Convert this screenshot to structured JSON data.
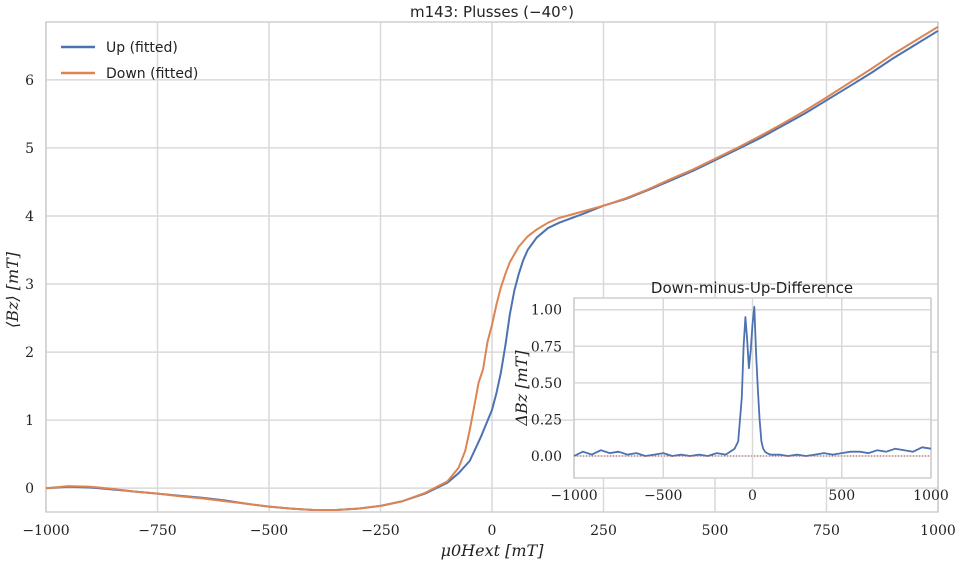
{
  "chart_data": [
    {
      "type": "line",
      "title": "m143: Plusses (−40°)",
      "xlabel": "μ0Hext [mT]",
      "ylabel": "⟨Bz⟩ [mT]",
      "xlim": [
        -1000,
        1000
      ],
      "ylim": [
        -0.35,
        6.85
      ],
      "xticks": [
        -1000,
        -750,
        -500,
        -250,
        0,
        250,
        500,
        750,
        1000
      ],
      "xtick_labels": [
        "−1000",
        "−750",
        "−500",
        "−250",
        "0",
        "250",
        "500",
        "750",
        "1000"
      ],
      "yticks": [
        0,
        1,
        2,
        3,
        4,
        5,
        6
      ],
      "ytick_labels": [
        "0",
        "1",
        "2",
        "3",
        "4",
        "5",
        "6"
      ],
      "grid": true,
      "legend_position": "top-left",
      "series": [
        {
          "name": "Up (fitted)",
          "color": "#4c72b0",
          "x": [
            -1000,
            -950,
            -900,
            -850,
            -800,
            -750,
            -700,
            -650,
            -600,
            -550,
            -500,
            -450,
            -400,
            -350,
            -300,
            -250,
            -200,
            -150,
            -100,
            -75,
            -50,
            -25,
            0,
            10,
            20,
            30,
            40,
            50,
            60,
            70,
            80,
            100,
            125,
            150,
            200,
            250,
            300,
            350,
            400,
            450,
            500,
            550,
            600,
            650,
            700,
            750,
            800,
            850,
            900,
            950,
            1000
          ],
          "y": [
            0.0,
            0.02,
            0.01,
            -0.02,
            -0.05,
            -0.08,
            -0.11,
            -0.14,
            -0.18,
            -0.23,
            -0.27,
            -0.3,
            -0.32,
            -0.32,
            -0.3,
            -0.26,
            -0.19,
            -0.08,
            0.08,
            0.22,
            0.4,
            0.75,
            1.15,
            1.4,
            1.7,
            2.1,
            2.55,
            2.9,
            3.15,
            3.35,
            3.5,
            3.68,
            3.82,
            3.9,
            4.02,
            4.15,
            4.25,
            4.38,
            4.52,
            4.66,
            4.82,
            4.98,
            5.14,
            5.32,
            5.5,
            5.7,
            5.9,
            6.1,
            6.32,
            6.52,
            6.72
          ]
        },
        {
          "name": "Down (fitted)",
          "color": "#dd8452",
          "x": [
            -1000,
            -950,
            -900,
            -850,
            -800,
            -750,
            -700,
            -650,
            -600,
            -550,
            -500,
            -450,
            -400,
            -350,
            -300,
            -250,
            -200,
            -150,
            -100,
            -75,
            -60,
            -50,
            -40,
            -30,
            -20,
            -10,
            0,
            10,
            20,
            30,
            40,
            60,
            80,
            100,
            125,
            150,
            200,
            250,
            300,
            350,
            400,
            450,
            500,
            550,
            600,
            650,
            700,
            750,
            800,
            850,
            900,
            950,
            1000
          ],
          "y": [
            0.0,
            0.03,
            0.02,
            -0.01,
            -0.05,
            -0.08,
            -0.12,
            -0.15,
            -0.19,
            -0.23,
            -0.27,
            -0.3,
            -0.32,
            -0.32,
            -0.3,
            -0.26,
            -0.19,
            -0.07,
            0.1,
            0.3,
            0.55,
            0.85,
            1.2,
            1.55,
            1.75,
            2.15,
            2.4,
            2.7,
            2.95,
            3.15,
            3.32,
            3.55,
            3.7,
            3.8,
            3.9,
            3.97,
            4.06,
            4.15,
            4.26,
            4.39,
            4.54,
            4.68,
            4.84,
            5.0,
            5.17,
            5.35,
            5.54,
            5.74,
            5.95,
            6.16,
            6.38,
            6.58,
            6.78
          ]
        }
      ]
    },
    {
      "type": "line",
      "title": "Down-minus-Up-Difference",
      "xlabel": "",
      "ylabel": "ΔBz [mT]",
      "xlim": [
        -1000,
        1000
      ],
      "ylim": [
        -0.15,
        1.08
      ],
      "xticks": [
        -1000,
        -500,
        0,
        500,
        1000
      ],
      "xtick_labels": [
        "−1000",
        "−500",
        "0",
        "500",
        "1000"
      ],
      "yticks": [
        0.0,
        0.25,
        0.5,
        0.75,
        1.0
      ],
      "ytick_labels": [
        "0.00",
        "0.25",
        "0.50",
        "0.75",
        "1.00"
      ],
      "grid": true,
      "series": [
        {
          "color": "#4c72b0",
          "x": [
            -1000,
            -950,
            -900,
            -850,
            -800,
            -750,
            -700,
            -650,
            -600,
            -550,
            -500,
            -450,
            -400,
            -350,
            -300,
            -250,
            -200,
            -150,
            -100,
            -80,
            -60,
            -50,
            -40,
            -30,
            -20,
            -10,
            0,
            10,
            20,
            30,
            40,
            50,
            60,
            70,
            80,
            100,
            150,
            200,
            250,
            300,
            350,
            400,
            450,
            500,
            550,
            600,
            650,
            700,
            750,
            800,
            850,
            900,
            950,
            1000
          ],
          "y": [
            0.0,
            0.03,
            0.01,
            0.04,
            0.02,
            0.03,
            0.01,
            0.02,
            0.0,
            0.01,
            0.02,
            0.0,
            0.01,
            0.0,
            0.01,
            0.0,
            0.02,
            0.01,
            0.05,
            0.1,
            0.4,
            0.75,
            0.95,
            0.8,
            0.6,
            0.72,
            0.9,
            1.02,
            0.7,
            0.45,
            0.25,
            0.1,
            0.05,
            0.03,
            0.02,
            0.01,
            0.01,
            0.0,
            0.01,
            0.0,
            0.01,
            0.02,
            0.01,
            0.02,
            0.03,
            0.03,
            0.02,
            0.04,
            0.03,
            0.05,
            0.04,
            0.03,
            0.06,
            0.05
          ]
        },
        {
          "color": "#c44e52",
          "style": "dotted",
          "x": [
            -1000,
            1000
          ],
          "y": [
            0,
            0
          ]
        }
      ]
    }
  ]
}
